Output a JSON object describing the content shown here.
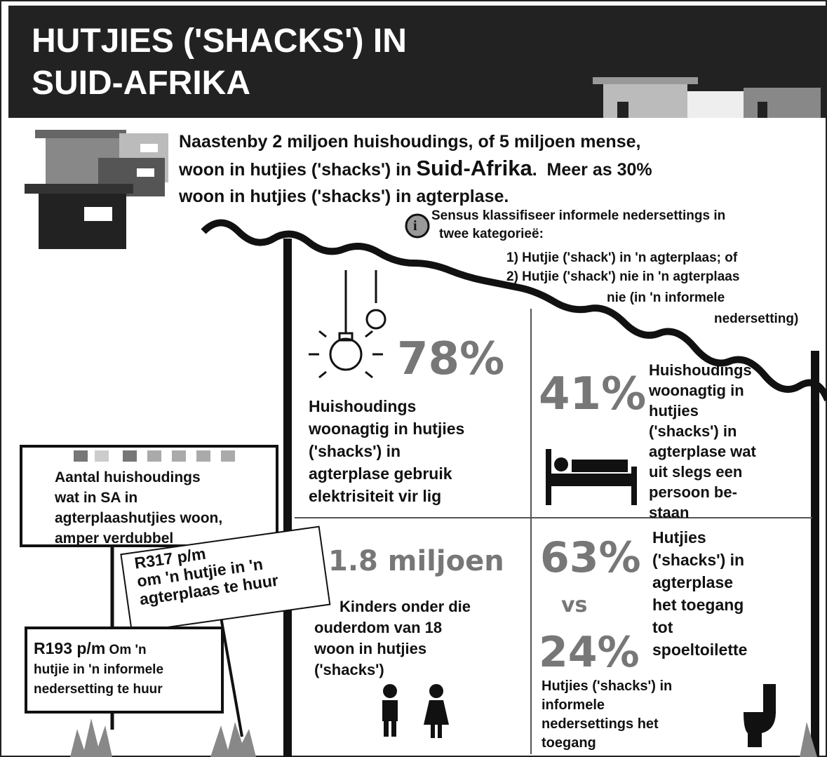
{
  "header": {
    "title_lines": [
      "HUTJIES ('SHACKS') IN",
      "SUID-AFRIKA"
    ]
  },
  "intro": {
    "line1": "Naastenby 2 miljoen huishoudings, of 5 miljoen mense,",
    "line2_start": "woon in hutjies ('shacks') in",
    "emphasis": "Suid-Afrika",
    "line2_end": ".  Meer as 30%",
    "line3": "woon in hutjies ('shacks') in agterplase."
  },
  "note": {
    "icon": "i",
    "lines": [
      "Sensus klassifiseer informele nedersettings in",
      "twee kategorieë:",
      "1) Hutjie ('shack') in 'n agterplaas; of",
      "2) Hutjie ('shack') nie in 'n agterplaas",
      "nie (in 'n informele",
      "nedersetting)"
    ]
  },
  "stats": [
    {
      "value": "78%",
      "lines": [
        "Huishoudings",
        "woonagtig in hutjies",
        "('shacks') in",
        "agterplase gebruik",
        "elektrisiteit vir lig"
      ]
    },
    {
      "value": "41%",
      "lines": [
        "Huishoudings",
        "woonagtig in",
        "hutjies",
        "('shacks') in",
        "agterplase wat",
        "uit slegs een",
        "persoon be-",
        "staan"
      ]
    },
    {
      "value": "1.8 miljoen",
      "lines": [
        "Kinders onder die",
        "ouderdom van 18",
        "woon in hutjies",
        "('shacks')"
      ]
    },
    {
      "value": "63%",
      "compare": "vs",
      "value2": "24%",
      "lines": [
        "Hutjies",
        "('shacks') in",
        "agterplase",
        "het toegang",
        "tot",
        "spoeltoilette"
      ],
      "lines2": [
        "Hutjies ('shacks') in",
        "informele",
        "nedersettings  het",
        "toegang"
      ]
    }
  ],
  "signs": [
    {
      "lines": [
        "Aantal huishoudings",
        "wat in SA in",
        "agterplaashutjies woon,",
        "amper verdubbel"
      ]
    },
    {
      "price": "R317 p/m",
      "lines": [
        "om 'n hutjie in 'n",
        "agterplaas te huur"
      ]
    },
    {
      "price": "R193 p/m",
      "price_note": "Om 'n",
      "lines": [
        "hutjie in 'n informele",
        "nedersetting te huur"
      ]
    }
  ]
}
